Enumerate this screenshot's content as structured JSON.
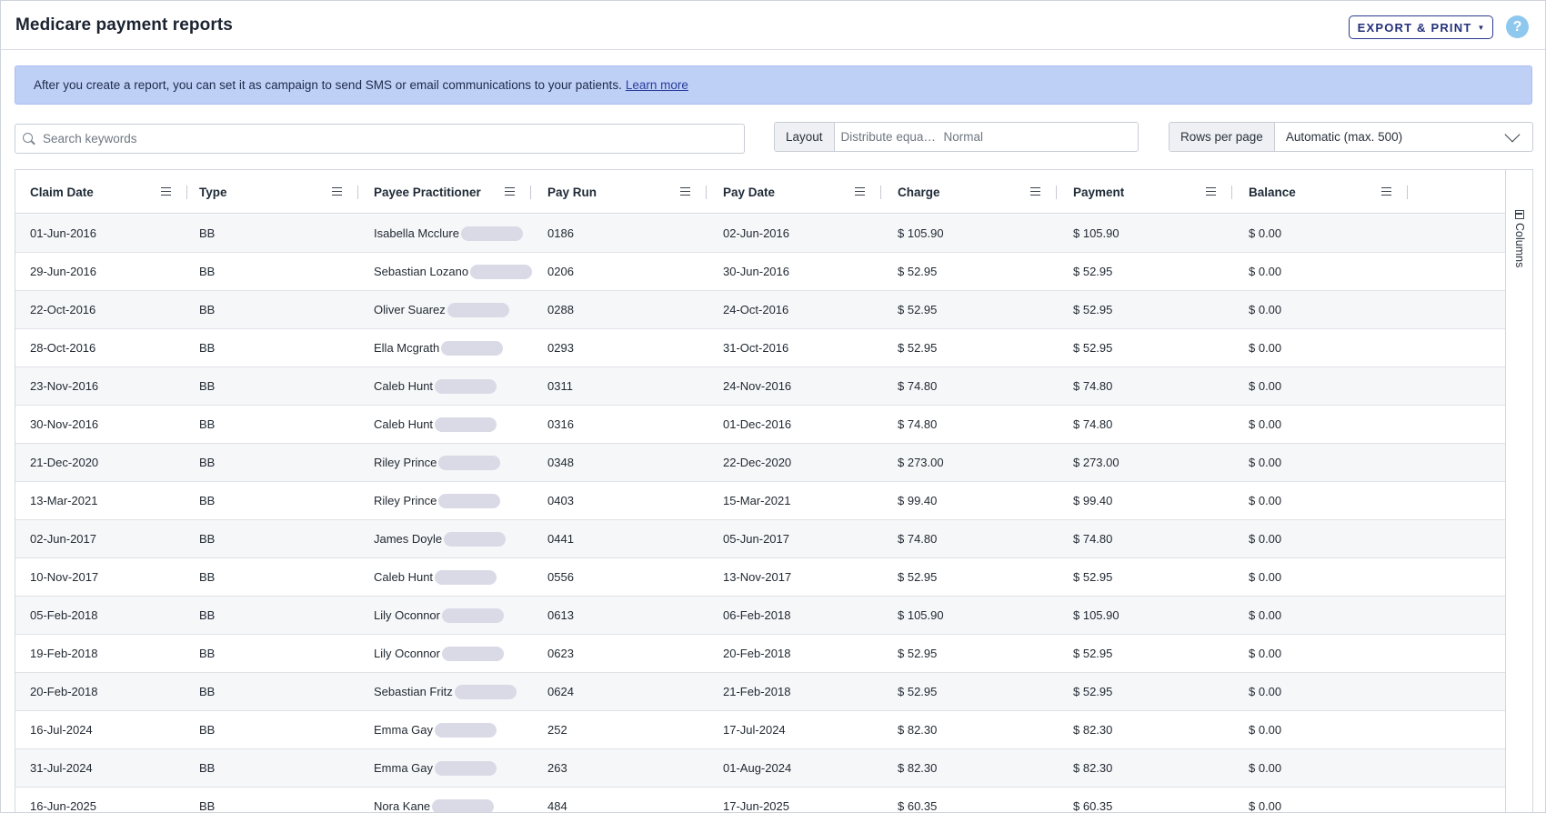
{
  "header": {
    "title": "Medicare payment reports",
    "export_label": "EXPORT & PRINT",
    "export_caret": "▼",
    "help_label": "?"
  },
  "banner": {
    "text": "After you create a report, you can set it as campaign to send SMS or email communications to your patients.",
    "link": "Learn more"
  },
  "search": {
    "placeholder": "Search keywords"
  },
  "layout": {
    "label": "Layout",
    "value1": "Distribute equally to fit",
    "value2": "Normal"
  },
  "rows_per_page": {
    "label": "Rows per page",
    "value": "Automatic (max. 500)"
  },
  "table": {
    "columns": [
      "Claim Date",
      "Type",
      "Payee Practitioner",
      "Pay Run",
      "Pay Date",
      "Charge",
      "Payment",
      "Balance"
    ],
    "rows": [
      [
        "01-Jun-2016",
        "BB",
        "Isabella Mcclure",
        "0186",
        "02-Jun-2016",
        "$ 105.90",
        "$ 105.90",
        "$ 0.00"
      ],
      [
        "29-Jun-2016",
        "BB",
        "Sebastian Lozano",
        "0206",
        "30-Jun-2016",
        "$ 52.95",
        "$ 52.95",
        "$ 0.00"
      ],
      [
        "22-Oct-2016",
        "BB",
        "Oliver Suarez",
        "0288",
        "24-Oct-2016",
        "$ 52.95",
        "$ 52.95",
        "$ 0.00"
      ],
      [
        "28-Oct-2016",
        "BB",
        "Ella Mcgrath",
        "0293",
        "31-Oct-2016",
        "$ 52.95",
        "$ 52.95",
        "$ 0.00"
      ],
      [
        "23-Nov-2016",
        "BB",
        "Caleb Hunt",
        "0311",
        "24-Nov-2016",
        "$ 74.80",
        "$ 74.80",
        "$ 0.00"
      ],
      [
        "30-Nov-2016",
        "BB",
        "Caleb Hunt",
        "0316",
        "01-Dec-2016",
        "$ 74.80",
        "$ 74.80",
        "$ 0.00"
      ],
      [
        "21-Dec-2020",
        "BB",
        "Riley Prince",
        "0348",
        "22-Dec-2020",
        "$ 273.00",
        "$ 273.00",
        "$ 0.00"
      ],
      [
        "13-Mar-2021",
        "BB",
        "Riley Prince",
        "0403",
        "15-Mar-2021",
        "$ 99.40",
        "$ 99.40",
        "$ 0.00"
      ],
      [
        "02-Jun-2017",
        "BB",
        "James Doyle",
        "0441",
        "05-Jun-2017",
        "$ 74.80",
        "$ 74.80",
        "$ 0.00"
      ],
      [
        "10-Nov-2017",
        "BB",
        "Caleb Hunt",
        "0556",
        "13-Nov-2017",
        "$ 52.95",
        "$ 52.95",
        "$ 0.00"
      ],
      [
        "05-Feb-2018",
        "BB",
        "Lily Oconnor",
        "0613",
        "06-Feb-2018",
        "$ 105.90",
        "$ 105.90",
        "$ 0.00"
      ],
      [
        "19-Feb-2018",
        "BB",
        "Lily Oconnor",
        "0623",
        "20-Feb-2018",
        "$ 52.95",
        "$ 52.95",
        "$ 0.00"
      ],
      [
        "20-Feb-2018",
        "BB",
        "Sebastian Fritz",
        "0624",
        "21-Feb-2018",
        "$ 52.95",
        "$ 52.95",
        "$ 0.00"
      ],
      [
        "16-Jul-2024",
        "BB",
        "Emma Gay",
        "252",
        "17-Jul-2024",
        "$ 82.30",
        "$ 82.30",
        "$ 0.00"
      ],
      [
        "31-Jul-2024",
        "BB",
        "Emma Gay",
        "263",
        "01-Aug-2024",
        "$ 82.30",
        "$ 82.30",
        "$ 0.00"
      ],
      [
        "16-Jun-2025",
        "BB",
        "Nora Kane",
        "484",
        "17-Jun-2025",
        "$ 60.35",
        "$ 60.35",
        "$ 0.00"
      ]
    ]
  },
  "side_panel": {
    "columns_label": "Columns"
  }
}
